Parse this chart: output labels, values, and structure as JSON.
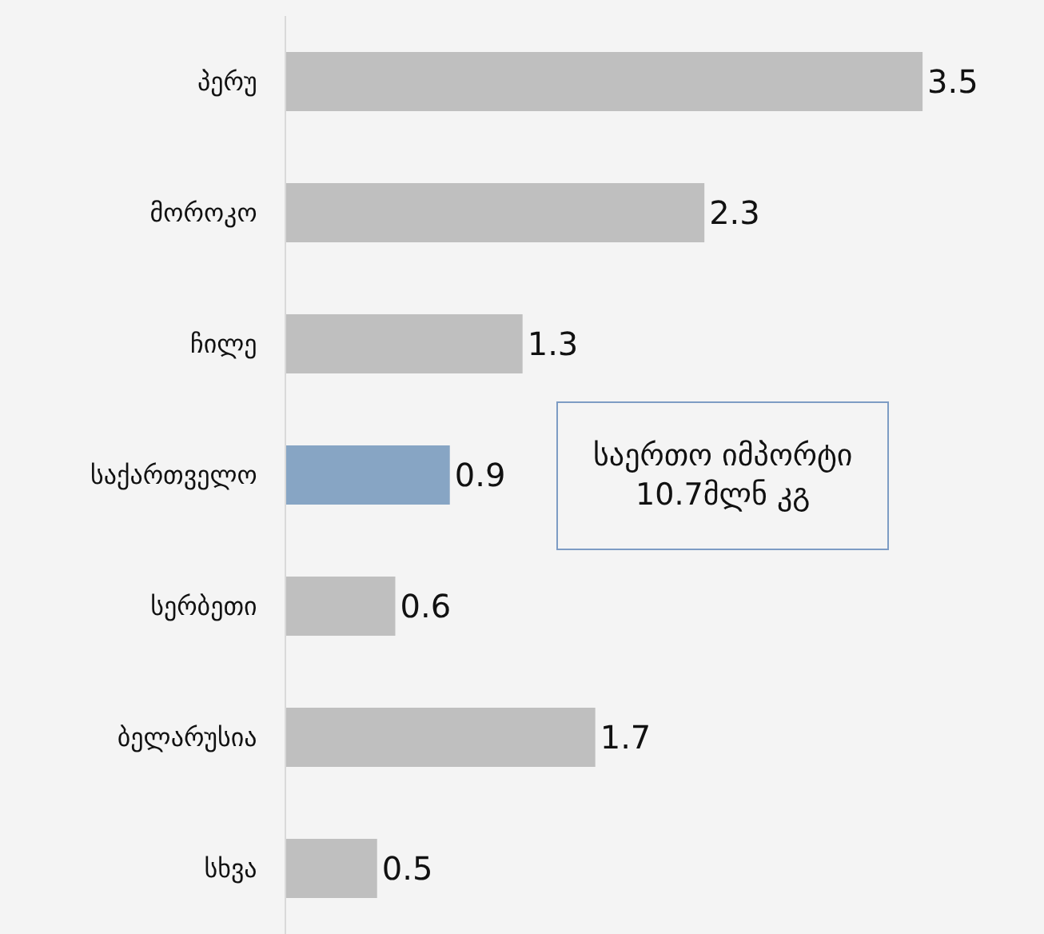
{
  "chart_data": {
    "type": "bar",
    "orientation": "horizontal",
    "categories": [
      "პერუ",
      "მოროკო",
      "ჩილე",
      "საქართველო",
      "სერბეთი",
      "ბელარუსია",
      "სხვა"
    ],
    "values": [
      3.5,
      2.3,
      1.3,
      0.9,
      0.6,
      1.7,
      0.5
    ],
    "colors": [
      "#bfbfbf",
      "#bfbfbf",
      "#bfbfbf",
      "#87a5c4",
      "#bfbfbf",
      "#bfbfbf",
      "#bfbfbf"
    ],
    "data_labels": true,
    "grid": false,
    "legend": false,
    "annotations": [
      "საერთო იმპორტი\n10.7მლნ კგ"
    ]
  }
}
